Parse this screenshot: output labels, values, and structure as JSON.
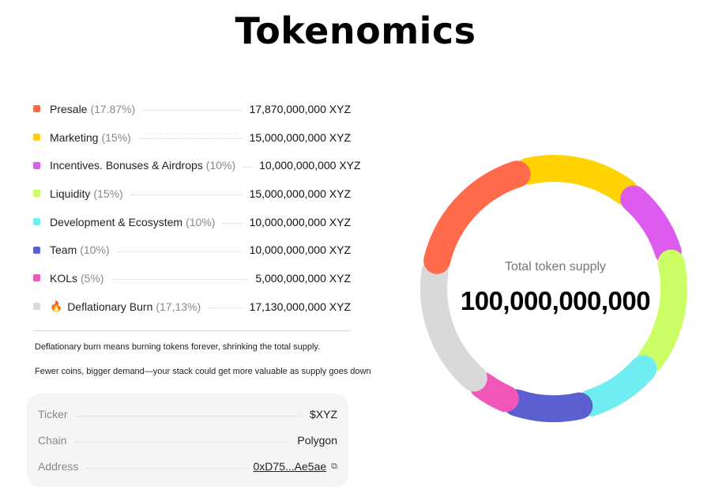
{
  "title": "Tokenomics",
  "legend": [
    {
      "name": "Presale",
      "percent": "(17.87%)",
      "amount": "17,870,000,000 XYZ",
      "color": "#FF6B4A",
      "value": 17.87
    },
    {
      "name": "Marketing",
      "percent": "(15%)",
      "amount": "15,000,000,000 XYZ",
      "color": "#FFD200",
      "value": 15
    },
    {
      "name": "Incentives. Bonuses & Airdrops",
      "percent": "(10%)",
      "amount": "10,000,000,000 XYZ",
      "color": "#DD5BEE",
      "value": 10
    },
    {
      "name": "Liquidity",
      "percent": "(15%)",
      "amount": "15,000,000,000 XYZ",
      "color": "#CCFF66",
      "value": 15
    },
    {
      "name": "Development & Ecosystem",
      "percent": "(10%)",
      "amount": "10,000,000,000 XYZ",
      "color": "#6FEDF0",
      "value": 10
    },
    {
      "name": "Team",
      "percent": "(10%)",
      "amount": "10,000,000,000 XYZ",
      "color": "#5B5FD0",
      "value": 10
    },
    {
      "name": "KOLs",
      "percent": "(5%)",
      "amount": "5,000,000,000 XYZ",
      "color": "#F057B8",
      "value": 5
    },
    {
      "name": "Deflationary Burn",
      "percent": "(17,13%)",
      "amount": "17,130,000,000 XYZ",
      "color": "#D9D9D9",
      "value": 17.13,
      "icon": "fire-icon"
    }
  ],
  "notes": {
    "line1": "Deflationary burn means burning tokens forever, shrinking the total supply.",
    "line2": "Fewer coins, bigger demand—your stack could get more valuable as supply goes down"
  },
  "info": {
    "ticker_label": "Ticker",
    "ticker_value": "$XYZ",
    "chain_label": "Chain",
    "chain_value": "Polygon",
    "address_label": "Address",
    "address_value": "0xD75...Ae5ae",
    "copy_icon": "copy-icon"
  },
  "donut": {
    "center_label": "Total token supply",
    "center_value": "100,000,000,000"
  }
}
